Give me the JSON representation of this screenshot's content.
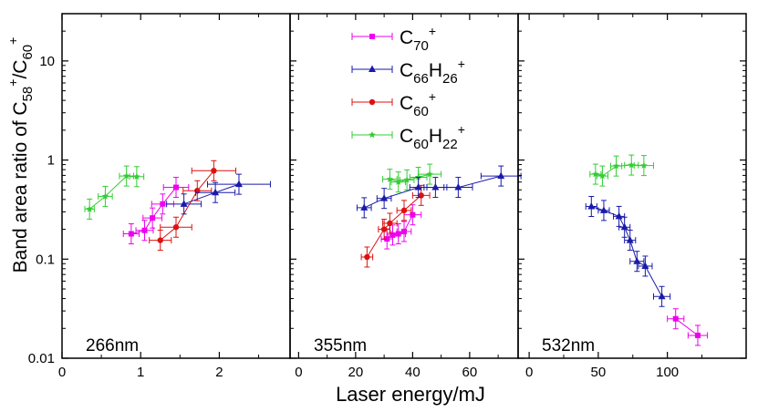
{
  "chart_data": {
    "type": "scatter",
    "ylabel": {
      "base": "Band area ratio of C",
      "num_sub": "58",
      "num_sup": "+",
      "slash": "/C",
      "den_sub": "60",
      "den_sup": "+"
    },
    "xlabel": "Laser energy/mJ",
    "y_scale": "log",
    "ylim": [
      0.01,
      30
    ],
    "y_ticks": [
      {
        "value": 0.01,
        "label": "0.01"
      },
      {
        "value": 0.1,
        "label": "0.1"
      },
      {
        "value": 1,
        "label": "1"
      },
      {
        "value": 10,
        "label": "10"
      }
    ],
    "colors": {
      "C70": "#ee00ee",
      "C66H26": "#1a1aaa",
      "C60": "#dd1111",
      "C60H22": "#33cc33"
    },
    "legend": {
      "placement": "top-center",
      "entries": [
        {
          "series": "C70",
          "base": "C",
          "sub": "70",
          "mid": "",
          "sub2": "",
          "sup": "+",
          "marker": "square"
        },
        {
          "series": "C66H26",
          "base": "C",
          "sub": "66",
          "mid": "H",
          "sub2": "26",
          "sup": "+",
          "marker": "triangle"
        },
        {
          "series": "C60",
          "base": "C",
          "sub": "60",
          "mid": "",
          "sub2": "",
          "sup": "+",
          "marker": "circle"
        },
        {
          "series": "C60H22",
          "base": "C",
          "sub": "60",
          "mid": "H",
          "sub2": "22",
          "sup": "+",
          "marker": "star"
        }
      ]
    },
    "panels": [
      {
        "label": "266nm",
        "xlim": [
          0,
          2.9
        ],
        "x_ticks": [
          {
            "value": 0,
            "label": "0"
          },
          {
            "value": 1,
            "label": "1"
          },
          {
            "value": 2,
            "label": "2"
          }
        ],
        "series": [
          {
            "name": "C60H22",
            "points": [
              [
                0.35,
                0.32,
                0.06
              ],
              [
                0.55,
                0.43,
                0.09
              ],
              [
                0.82,
                0.69,
                0.09
              ],
              [
                0.95,
                0.68,
                0.09
              ]
            ]
          },
          {
            "name": "C70",
            "points": [
              [
                0.88,
                0.18,
                0.1
              ],
              [
                1.05,
                0.195,
                0.11
              ],
              [
                1.15,
                0.26,
                0.12
              ],
              [
                1.28,
                0.36,
                0.14
              ],
              [
                1.45,
                0.53,
                0.16
              ]
            ]
          },
          {
            "name": "C60",
            "points": [
              [
                1.25,
                0.155,
                0.14
              ],
              [
                1.45,
                0.21,
                0.2
              ],
              [
                1.72,
                0.49,
                0.18
              ],
              [
                1.93,
                0.78,
                0.28
              ]
            ]
          },
          {
            "name": "C66H26",
            "points": [
              [
                1.55,
                0.36,
                0.22
              ],
              [
                1.95,
                0.47,
                0.25
              ],
              [
                2.25,
                0.57,
                0.4
              ]
            ]
          }
        ]
      },
      {
        "label": "355nm",
        "xlim": [
          -3,
          77
        ],
        "x_ticks": [
          {
            "value": 0,
            "label": "0"
          },
          {
            "value": 20,
            "label": "20"
          },
          {
            "value": 40,
            "label": "40"
          },
          {
            "value": 60,
            "label": "60"
          }
        ],
        "series": [
          {
            "name": "C60H22",
            "points": [
              [
                32,
                0.64,
                2.5
              ],
              [
                35,
                0.6,
                2.5
              ],
              [
                38,
                0.63,
                2.5
              ],
              [
                42,
                0.67,
                3.0
              ],
              [
                46,
                0.72,
                4.0
              ]
            ]
          },
          {
            "name": "C70",
            "points": [
              [
                31,
                0.16,
                2.0
              ],
              [
                33,
                0.175,
                2.0
              ],
              [
                35,
                0.18,
                2.5
              ],
              [
                37,
                0.19,
                2.5
              ],
              [
                40,
                0.28,
                3.0
              ]
            ]
          },
          {
            "name": "C60",
            "points": [
              [
                24,
                0.105,
                2.0
              ],
              [
                30,
                0.2,
                2.0
              ],
              [
                32,
                0.23,
                2.5
              ],
              [
                37,
                0.31,
                2.5
              ],
              [
                43,
                0.44,
                3.0
              ]
            ]
          },
          {
            "name": "C66H26",
            "points": [
              [
                23,
                0.33,
                2.5
              ],
              [
                30,
                0.41,
                2.5
              ],
              [
                42,
                0.53,
                3.0
              ],
              [
                48,
                0.53,
                4.0
              ],
              [
                56,
                0.53,
                5.0
              ],
              [
                71,
                0.69,
                7.0
              ]
            ]
          }
        ]
      },
      {
        "label": "532nm",
        "xlim": [
          -8,
          157
        ],
        "x_ticks": [
          {
            "value": 0,
            "label": "0"
          },
          {
            "value": 50,
            "label": "50"
          },
          {
            "value": 100,
            "label": "100"
          }
        ],
        "series": [
          {
            "name": "C60H22",
            "points": [
              [
                48,
                0.72,
                4.0
              ],
              [
                53,
                0.69,
                4.0
              ],
              [
                63,
                0.87,
                4.0
              ],
              [
                74,
                0.89,
                5.0
              ],
              [
                83,
                0.88,
                7.0
              ]
            ]
          },
          {
            "name": "C66H26",
            "points": [
              [
                45,
                0.34,
                4.0
              ],
              [
                54,
                0.31,
                4.0
              ],
              [
                65,
                0.27,
                4.0
              ],
              [
                69,
                0.21,
                4.0
              ],
              [
                73,
                0.155,
                4.0
              ],
              [
                78,
                0.095,
                5.0
              ],
              [
                84,
                0.085,
                5.0
              ],
              [
                96,
                0.042,
                6.0
              ]
            ]
          },
          {
            "name": "C70",
            "points": [
              [
                106,
                0.025,
                6.0
              ],
              [
                122,
                0.017,
                7.0
              ]
            ]
          }
        ]
      }
    ]
  }
}
